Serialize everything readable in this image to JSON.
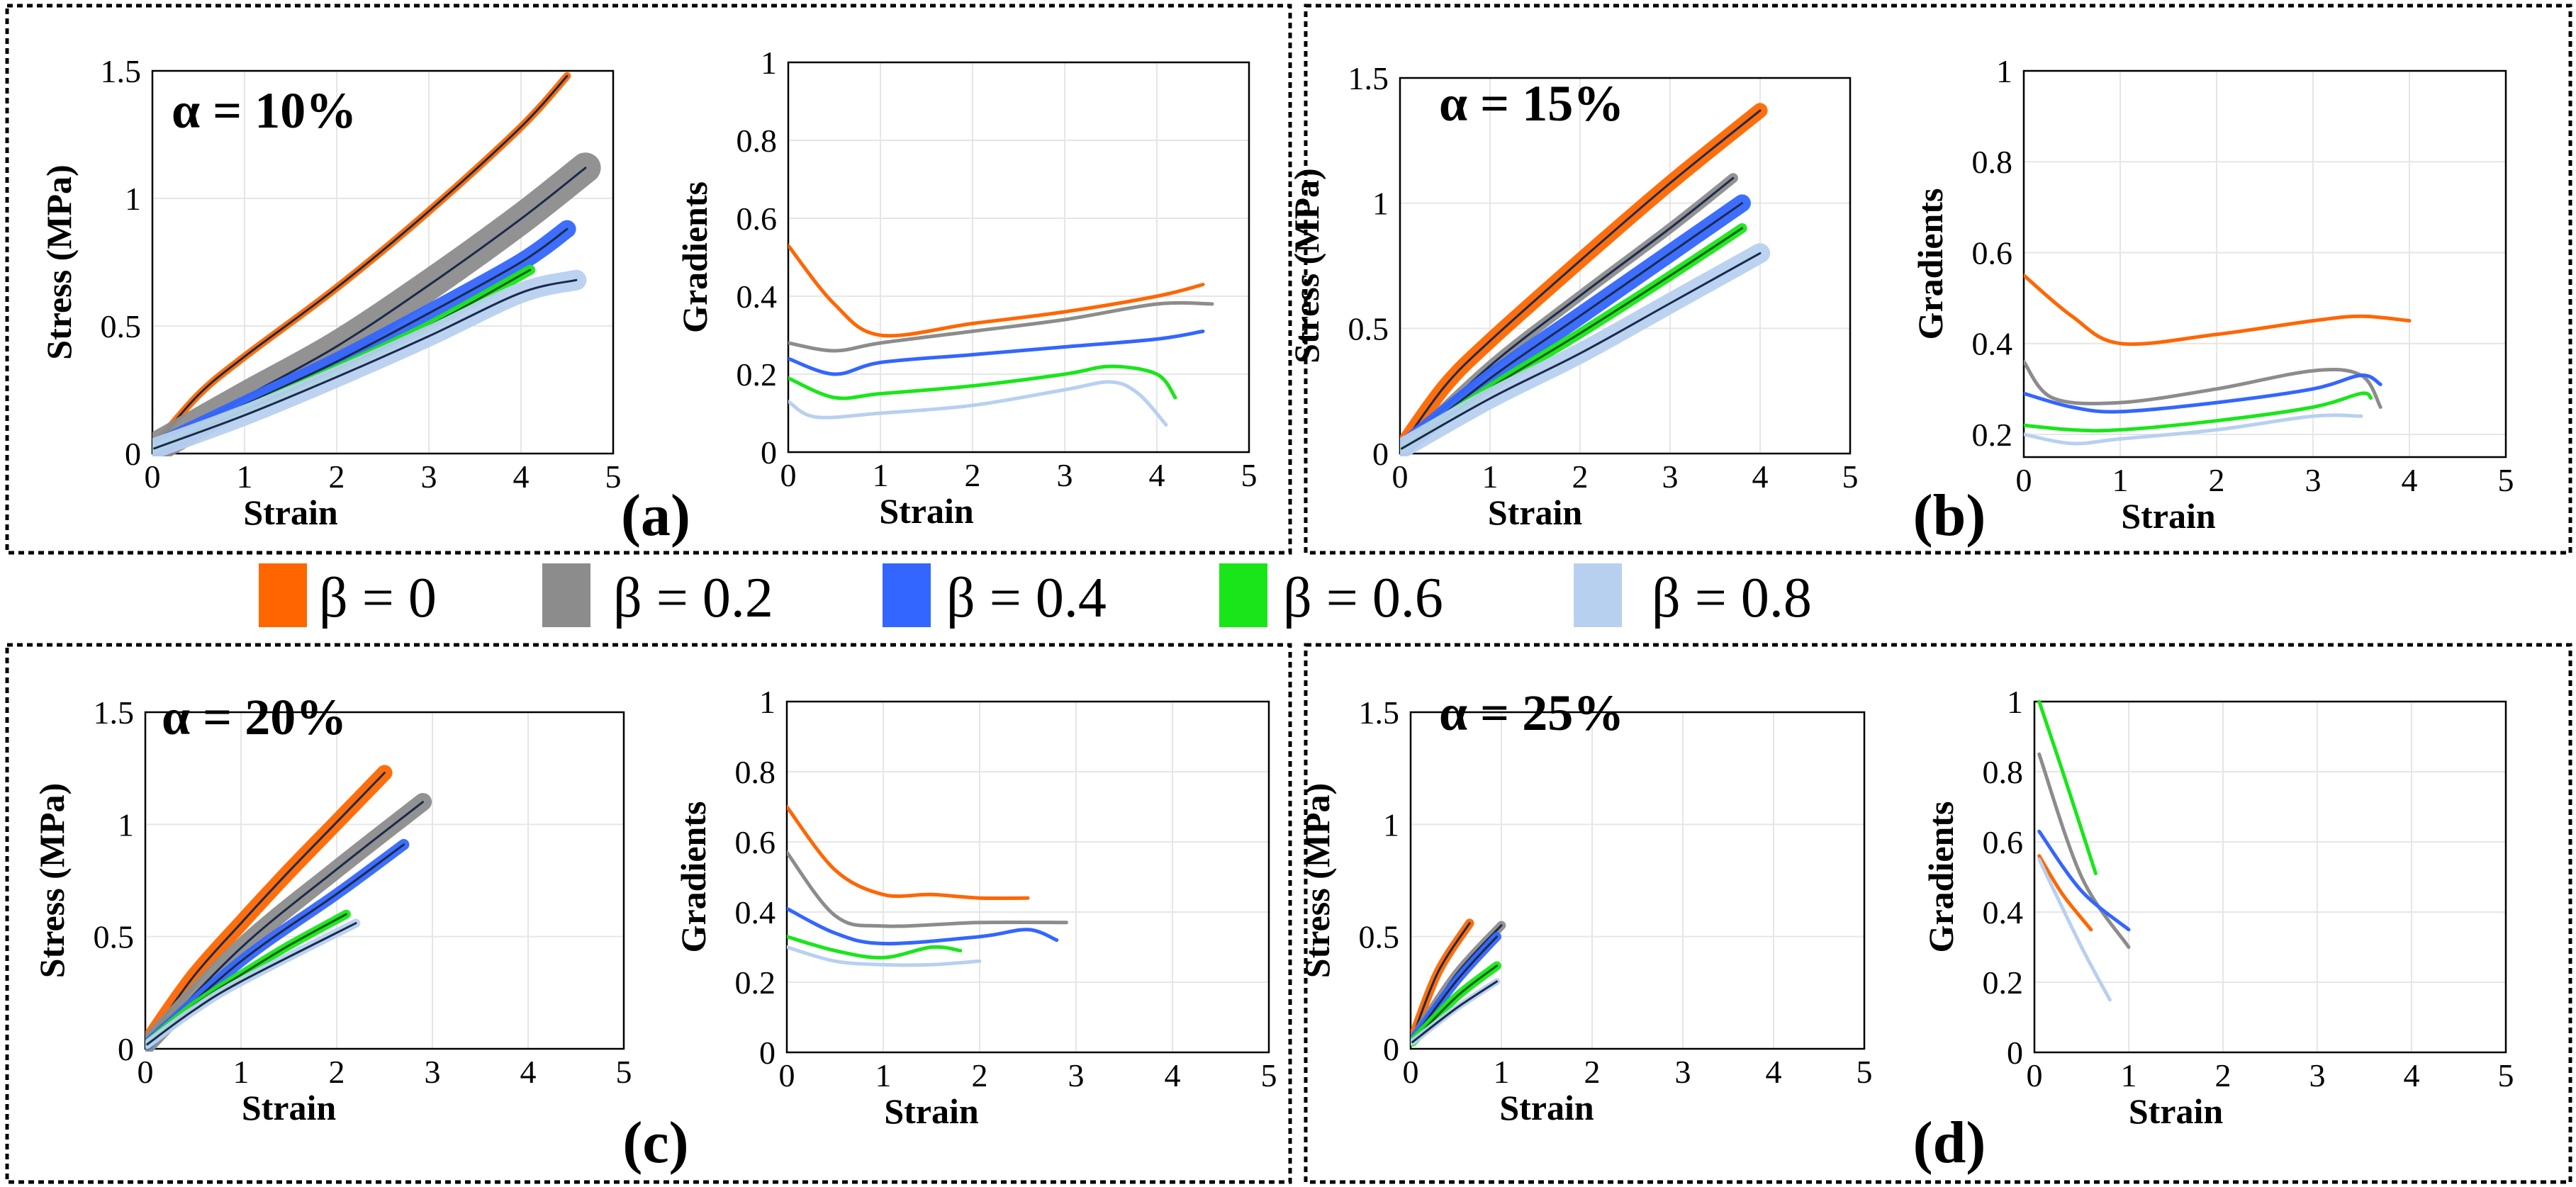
{
  "colors": {
    "beta_0": "#ff6600",
    "beta_0_2": "#8c8c8c",
    "beta_0_4": "#3366ff",
    "beta_0_6": "#19e619",
    "beta_0_8": "#b8d0f0",
    "mean_line_dark": "#1a2a4a",
    "mean_line_green": "#006000",
    "frame": "#000000",
    "grid": "#e6e6e6"
  },
  "legend": [
    {
      "label": "β = 0",
      "color_key": "beta_0"
    },
    {
      "label": "β = 0.2",
      "color_key": "beta_0_2"
    },
    {
      "label": "β = 0.4",
      "color_key": "beta_0_4"
    },
    {
      "label": "β = 0.6",
      "color_key": "beta_0_6"
    },
    {
      "label": "β = 0.8",
      "color_key": "beta_0_8"
    }
  ],
  "chart_data": [
    {
      "panel": "(a)",
      "alpha_label": "α = 10%",
      "stress": {
        "type": "line",
        "xlabel": "Strain",
        "ylabel": "Stress (MPa)",
        "xlim": [
          0,
          5
        ],
        "ylim": [
          0,
          1.5
        ],
        "xticks": [
          "0",
          "1",
          "2",
          "3",
          "4",
          "5"
        ],
        "yticks": [
          "0",
          "0.5",
          "1",
          "1.5"
        ],
        "series": [
          {
            "name": "β = 0",
            "color_key": "beta_0",
            "band": 0.015,
            "x": [
              0.02,
              0.5,
              1,
              2,
              3,
              4,
              4.5
            ],
            "y": [
              0.03,
              0.23,
              0.38,
              0.65,
              0.95,
              1.28,
              1.48
            ]
          },
          {
            "name": "β = 0.2",
            "color_key": "beta_0_2",
            "band": 0.06,
            "x": [
              0.02,
              1,
              2,
              3,
              4,
              4.7
            ],
            "y": [
              0.02,
              0.22,
              0.42,
              0.66,
              0.92,
              1.12
            ]
          },
          {
            "name": "β = 0.4",
            "color_key": "beta_0_4",
            "band": 0.035,
            "x": [
              0.02,
              1,
              2,
              3,
              4,
              4.5
            ],
            "y": [
              0.02,
              0.19,
              0.36,
              0.55,
              0.75,
              0.88
            ]
          },
          {
            "name": "β = 0.6",
            "color_key": "beta_0_6",
            "band": 0.02,
            "x": [
              0.02,
              1,
              2,
              3,
              4.1
            ],
            "y": [
              0.02,
              0.17,
              0.33,
              0.5,
              0.72
            ]
          },
          {
            "name": "β = 0.8",
            "color_key": "beta_0_8",
            "band": 0.04,
            "x": [
              0.02,
              1,
              2,
              3,
              4,
              4.6
            ],
            "y": [
              0.02,
              0.15,
              0.3,
              0.46,
              0.63,
              0.68
            ]
          }
        ]
      },
      "gradients": {
        "type": "line",
        "xlabel": "Strain",
        "ylabel": "Gradients",
        "xlim": [
          0,
          5
        ],
        "ylim": [
          0,
          1
        ],
        "xticks": [
          "0",
          "1",
          "2",
          "3",
          "4",
          "5"
        ],
        "yticks": [
          "0",
          "0.2",
          "0.4",
          "0.6",
          "0.8",
          "1"
        ],
        "series": [
          {
            "name": "β = 0",
            "color_key": "beta_0",
            "x": [
              0,
              0.5,
              1,
              2,
              3,
              4,
              4.5
            ],
            "y": [
              0.53,
              0.38,
              0.3,
              0.33,
              0.36,
              0.4,
              0.43
            ]
          },
          {
            "name": "β = 0.2",
            "color_key": "beta_0_2",
            "x": [
              0,
              0.5,
              1,
              2,
              3,
              4,
              4.6
            ],
            "y": [
              0.28,
              0.26,
              0.28,
              0.31,
              0.34,
              0.38,
              0.38
            ]
          },
          {
            "name": "β = 0.4",
            "color_key": "beta_0_4",
            "x": [
              0,
              0.5,
              1,
              2,
              3,
              4,
              4.5
            ],
            "y": [
              0.24,
              0.2,
              0.23,
              0.25,
              0.27,
              0.29,
              0.31
            ]
          },
          {
            "name": "β = 0.6",
            "color_key": "beta_0_6",
            "x": [
              0,
              0.5,
              1,
              2,
              3,
              3.5,
              4,
              4.2
            ],
            "y": [
              0.19,
              0.14,
              0.15,
              0.17,
              0.2,
              0.22,
              0.2,
              0.14
            ]
          },
          {
            "name": "β = 0.8",
            "color_key": "beta_0_8",
            "x": [
              0,
              0.3,
              1,
              2,
              3,
              3.5,
              3.8,
              4.1
            ],
            "y": [
              0.13,
              0.09,
              0.1,
              0.12,
              0.16,
              0.18,
              0.15,
              0.07
            ]
          }
        ]
      }
    },
    {
      "panel": "(b)",
      "alpha_label": "α = 15%",
      "stress": {
        "type": "line",
        "xlabel": "Strain",
        "ylabel": "Stress (MPa)",
        "xlim": [
          0,
          5
        ],
        "ylim": [
          0,
          1.5
        ],
        "xticks": [
          "0",
          "1",
          "2",
          "3",
          "4",
          "5"
        ],
        "yticks": [
          "0",
          "0.5",
          "1",
          "1.5"
        ],
        "series": [
          {
            "name": "β = 0",
            "color_key": "beta_0",
            "band": 0.03,
            "x": [
              0.02,
              0.5,
              1,
              2,
              3,
              4
            ],
            "y": [
              0.03,
              0.27,
              0.45,
              0.77,
              1.08,
              1.37
            ]
          },
          {
            "name": "β = 0.2",
            "color_key": "beta_0_2",
            "band": 0.02,
            "x": [
              0.02,
              1,
              2,
              3,
              3.7
            ],
            "y": [
              0.02,
              0.35,
              0.63,
              0.9,
              1.1
            ]
          },
          {
            "name": "β = 0.4",
            "color_key": "beta_0_4",
            "band": 0.035,
            "x": [
              0.02,
              1,
              2,
              3,
              3.8
            ],
            "y": [
              0.02,
              0.3,
              0.55,
              0.8,
              1.0
            ]
          },
          {
            "name": "β = 0.6",
            "color_key": "beta_0_6",
            "band": 0.02,
            "x": [
              0.02,
              1,
              2,
              3,
              3.8
            ],
            "y": [
              0.02,
              0.26,
              0.48,
              0.71,
              0.9
            ]
          },
          {
            "name": "β = 0.8",
            "color_key": "beta_0_8",
            "band": 0.04,
            "x": [
              0.02,
              1,
              2,
              3,
              4
            ],
            "y": [
              0.02,
              0.22,
              0.4,
              0.6,
              0.8
            ]
          }
        ]
      },
      "gradients": {
        "type": "line",
        "xlabel": "Strain",
        "ylabel": "Gradients",
        "xlim": [
          0,
          5
        ],
        "ylim": [
          0.15,
          1
        ],
        "xticks": [
          "0",
          "1",
          "2",
          "3",
          "4",
          "5"
        ],
        "yticks": [
          "0.2",
          "0.4",
          "0.6",
          "0.8",
          "1"
        ],
        "series": [
          {
            "name": "β = 0",
            "color_key": "beta_0",
            "x": [
              0,
              0.5,
              1,
              2,
              3,
              3.5,
              4
            ],
            "y": [
              0.55,
              0.46,
              0.4,
              0.42,
              0.45,
              0.46,
              0.45
            ]
          },
          {
            "name": "β = 0.2",
            "color_key": "beta_0_2",
            "x": [
              0,
              0.3,
              1,
              2,
              3,
              3.5,
              3.7
            ],
            "y": [
              0.36,
              0.28,
              0.27,
              0.3,
              0.34,
              0.33,
              0.26
            ]
          },
          {
            "name": "β = 0.4",
            "color_key": "beta_0_4",
            "x": [
              0,
              0.5,
              1,
              2,
              3,
              3.5,
              3.7
            ],
            "y": [
              0.29,
              0.26,
              0.25,
              0.27,
              0.3,
              0.33,
              0.31
            ]
          },
          {
            "name": "β = 0.6",
            "color_key": "beta_0_6",
            "x": [
              0,
              0.5,
              1,
              2,
              3,
              3.5,
              3.6
            ],
            "y": [
              0.22,
              0.21,
              0.21,
              0.23,
              0.26,
              0.29,
              0.28
            ]
          },
          {
            "name": "β = 0.8",
            "color_key": "beta_0_8",
            "x": [
              0,
              0.5,
              1,
              2,
              3,
              3.5
            ],
            "y": [
              0.2,
              0.18,
              0.19,
              0.21,
              0.24,
              0.24
            ]
          }
        ]
      }
    },
    {
      "panel": "(c)",
      "alpha_label": "α = 20%",
      "stress": {
        "type": "line",
        "xlabel": "Strain",
        "ylabel": "Stress (MPa)",
        "xlim": [
          0,
          5
        ],
        "ylim": [
          0,
          1.5
        ],
        "xticks": [
          "0",
          "1",
          "2",
          "3",
          "4",
          "5"
        ],
        "yticks": [
          "0",
          "0.5",
          "1",
          "1.5"
        ],
        "series": [
          {
            "name": "β = 0",
            "color_key": "beta_0",
            "band": 0.035,
            "x": [
              0.02,
              0.5,
              1,
              1.5,
              2,
              2.5
            ],
            "y": [
              0.03,
              0.32,
              0.56,
              0.79,
              1.01,
              1.23
            ]
          },
          {
            "name": "β = 0.2",
            "color_key": "beta_0_2",
            "band": 0.04,
            "x": [
              0.02,
              1,
              2,
              2.9
            ],
            "y": [
              0.02,
              0.45,
              0.8,
              1.1
            ]
          },
          {
            "name": "β = 0.4",
            "color_key": "beta_0_4",
            "band": 0.025,
            "x": [
              0.02,
              1,
              2,
              2.7
            ],
            "y": [
              0.02,
              0.39,
              0.69,
              0.91
            ]
          },
          {
            "name": "β = 0.6",
            "color_key": "beta_0_6",
            "band": 0.02,
            "x": [
              0.02,
              0.5,
              1,
              1.5,
              2.1
            ],
            "y": [
              0.02,
              0.19,
              0.33,
              0.46,
              0.6
            ]
          },
          {
            "name": "β = 0.8",
            "color_key": "beta_0_8",
            "band": 0.02,
            "x": [
              0.02,
              0.5,
              1,
              2.2
            ],
            "y": [
              0.02,
              0.17,
              0.3,
              0.56
            ]
          }
        ]
      },
      "gradients": {
        "type": "line",
        "xlabel": "Strain",
        "ylabel": "Gradients",
        "xlim": [
          0,
          5
        ],
        "ylim": [
          0,
          1
        ],
        "xticks": [
          "0",
          "1",
          "2",
          "3",
          "4",
          "5"
        ],
        "yticks": [
          "0",
          "0.2",
          "0.4",
          "0.6",
          "0.8",
          "1"
        ],
        "series": [
          {
            "name": "β = 0",
            "color_key": "beta_0",
            "x": [
              0,
              0.5,
              1,
              1.5,
              2,
              2.5
            ],
            "y": [
              0.7,
              0.52,
              0.45,
              0.45,
              0.44,
              0.44
            ]
          },
          {
            "name": "β = 0.2",
            "color_key": "beta_0_2",
            "x": [
              0,
              0.5,
              1,
              2,
              2.9
            ],
            "y": [
              0.57,
              0.39,
              0.36,
              0.37,
              0.37
            ]
          },
          {
            "name": "β = 0.4",
            "color_key": "beta_0_4",
            "x": [
              0,
              0.5,
              1,
              2,
              2.5,
              2.8
            ],
            "y": [
              0.41,
              0.34,
              0.31,
              0.33,
              0.35,
              0.32
            ]
          },
          {
            "name": "β = 0.6",
            "color_key": "beta_0_6",
            "x": [
              0,
              0.5,
              1,
              1.5,
              1.8
            ],
            "y": [
              0.33,
              0.29,
              0.27,
              0.3,
              0.29
            ]
          },
          {
            "name": "β = 0.8",
            "color_key": "beta_0_8",
            "x": [
              0,
              0.5,
              1,
              1.5,
              2
            ],
            "y": [
              0.3,
              0.26,
              0.25,
              0.25,
              0.26
            ]
          }
        ]
      }
    },
    {
      "panel": "(d)",
      "alpha_label": "α = 25%",
      "stress": {
        "type": "line",
        "xlabel": "Strain",
        "ylabel": "Stress (MPa)",
        "xlim": [
          0,
          5
        ],
        "ylim": [
          0,
          1.5
        ],
        "xticks": [
          "0",
          "1",
          "2",
          "3",
          "4",
          "5"
        ],
        "yticks": [
          "0",
          "0.5",
          "1",
          "1.5"
        ],
        "series": [
          {
            "name": "β = 0",
            "color_key": "beta_0",
            "band": 0.02,
            "x": [
              0.02,
              0.3,
              0.65
            ],
            "y": [
              0.05,
              0.34,
              0.56
            ]
          },
          {
            "name": "β = 0.2",
            "color_key": "beta_0_2",
            "band": 0.02,
            "x": [
              0.02,
              0.5,
              1
            ],
            "y": [
              0.04,
              0.33,
              0.55
            ]
          },
          {
            "name": "β = 0.4",
            "color_key": "beta_0_4",
            "band": 0.02,
            "x": [
              0.02,
              0.5,
              0.95
            ],
            "y": [
              0.04,
              0.3,
              0.5
            ]
          },
          {
            "name": "β = 0.6",
            "color_key": "beta_0_6",
            "band": 0.02,
            "x": [
              0.02,
              0.5,
              0.95
            ],
            "y": [
              0.03,
              0.23,
              0.37
            ]
          },
          {
            "name": "β = 0.8",
            "color_key": "beta_0_8",
            "band": 0.015,
            "x": [
              0.02,
              0.5,
              0.95
            ],
            "y": [
              0.03,
              0.18,
              0.3
            ]
          }
        ]
      },
      "gradients": {
        "type": "line",
        "xlabel": "Strain",
        "ylabel": "Gradients",
        "xlim": [
          0,
          5
        ],
        "ylim": [
          0,
          1
        ],
        "xticks": [
          "0",
          "1",
          "2",
          "3",
          "4",
          "5"
        ],
        "yticks": [
          "0",
          "0.2",
          "0.4",
          "0.6",
          "0.8",
          "1"
        ],
        "series": [
          {
            "name": "β = 0",
            "color_key": "beta_0",
            "x": [
              0.05,
              0.3,
              0.6
            ],
            "y": [
              0.56,
              0.45,
              0.35
            ]
          },
          {
            "name": "β = 0.2",
            "color_key": "beta_0_2",
            "x": [
              0.05,
              0.5,
              1
            ],
            "y": [
              0.85,
              0.5,
              0.3
            ]
          },
          {
            "name": "β = 0.4",
            "color_key": "beta_0_4",
            "x": [
              0.05,
              0.5,
              1
            ],
            "y": [
              0.63,
              0.46,
              0.35
            ]
          },
          {
            "name": "β = 0.6",
            "color_key": "beta_0_6",
            "x": [
              0.05,
              0.3,
              0.65
            ],
            "y": [
              1.0,
              0.8,
              0.51
            ]
          },
          {
            "name": "β = 0.8",
            "color_key": "beta_0_8",
            "x": [
              0.05,
              0.5,
              0.8
            ],
            "y": [
              0.55,
              0.3,
              0.15
            ]
          }
        ]
      }
    }
  ]
}
